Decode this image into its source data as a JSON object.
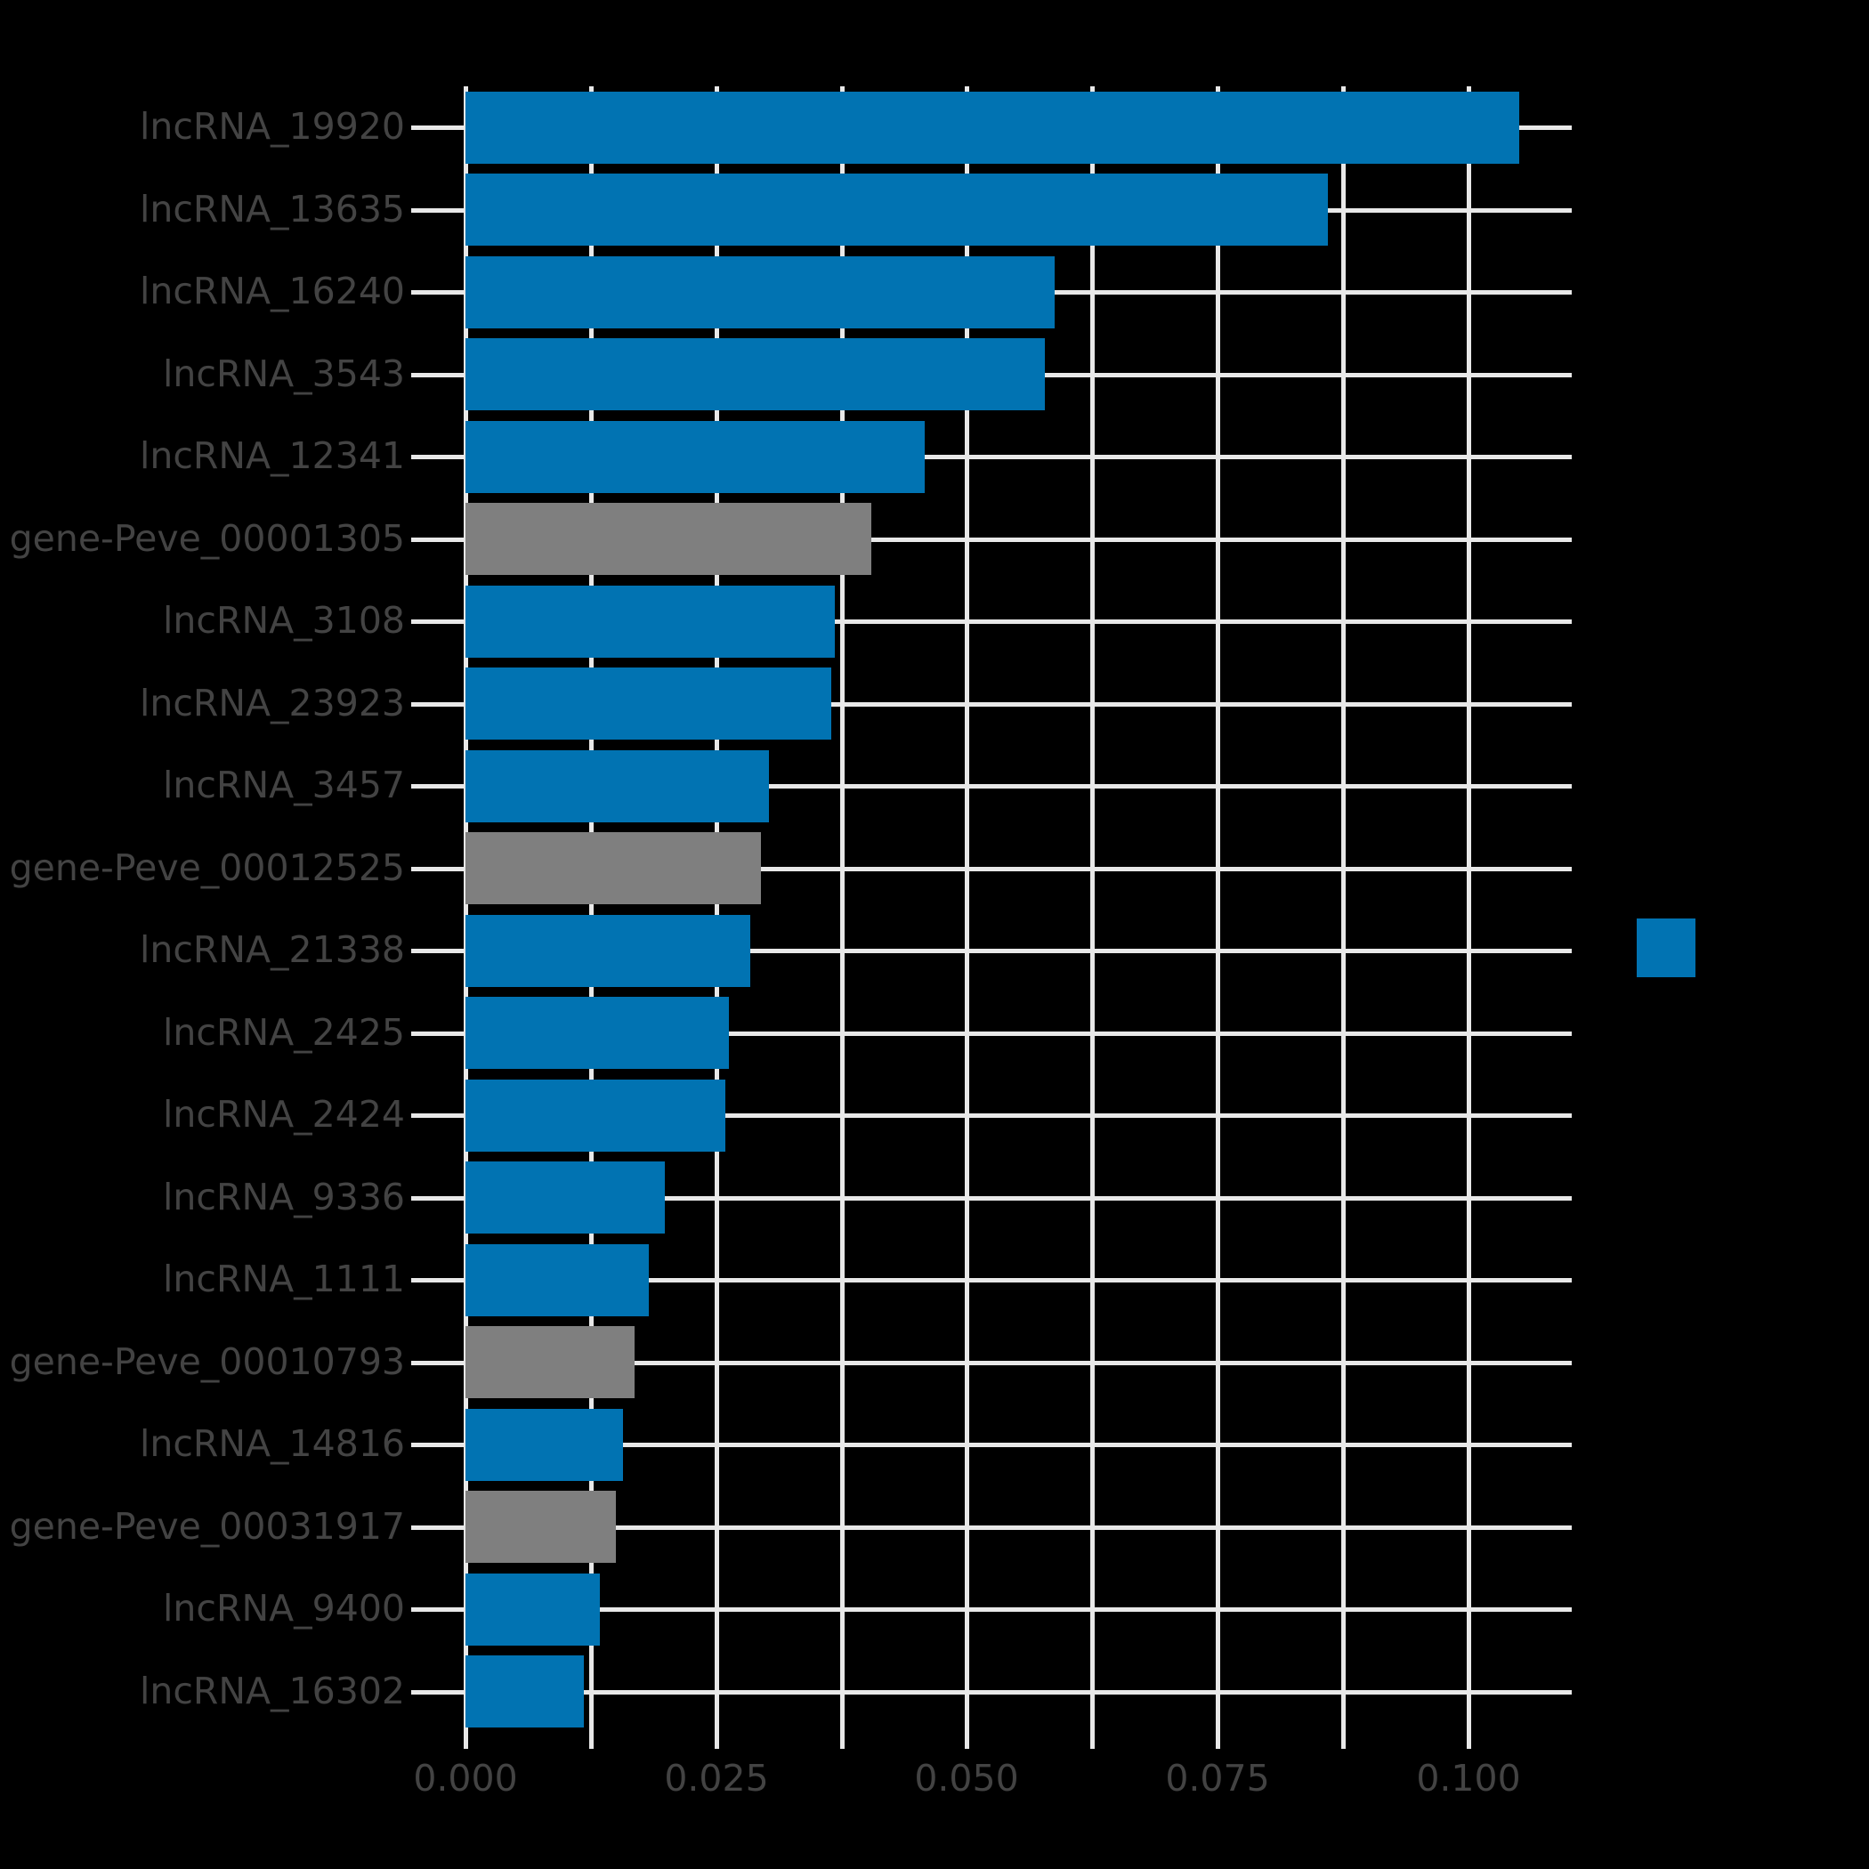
{
  "chart_data": {
    "type": "bar",
    "orientation": "horizontal",
    "title": "",
    "xlabel": "",
    "ylabel": "",
    "categories": [
      "lncRNA_19920",
      "lncRNA_13635",
      "lncRNA_16240",
      "lncRNA_3543",
      "lncRNA_12341",
      "gene-Peve_00001305",
      "lncRNA_3108",
      "lncRNA_23923",
      "lncRNA_3457",
      "gene-Peve_00012525",
      "lncRNA_21338",
      "lncRNA_2425",
      "lncRNA_2424",
      "lncRNA_9336",
      "lncRNA_1111",
      "gene-Peve_00010793",
      "lncRNA_14816",
      "gene-Peve_00031917",
      "lncRNA_9400",
      "lncRNA_16302"
    ],
    "values": [
      0.1051,
      0.086,
      0.0587,
      0.0578,
      0.0458,
      0.0405,
      0.0368,
      0.0365,
      0.0303,
      0.0295,
      0.0284,
      0.0263,
      0.0259,
      0.0199,
      0.0183,
      0.0169,
      0.0157,
      0.015,
      0.0134,
      0.0118
    ],
    "series_colors": {
      "lncRNA": "#0173b2",
      "gene-Peve": "#7f7f7f"
    },
    "x_tick_labels": [
      "0.000",
      "0.025",
      "0.050",
      "0.075",
      "0.100"
    ],
    "x_tick_values": [
      0,
      0.025,
      0.05,
      0.075,
      0.1
    ],
    "x_minor_tick_step": 0.0125,
    "xlim": [
      0,
      0.1103
    ],
    "grid": true,
    "legend_position": "right",
    "legend_swatch_color": "#0173b2"
  },
  "styles": {
    "background": "#000000",
    "grid_color": "#e8e8e8",
    "tick_color": "#e8e8e8",
    "label_color": "#434343",
    "bar_blue": "#0173b2",
    "bar_gray": "#7f7f7f"
  }
}
